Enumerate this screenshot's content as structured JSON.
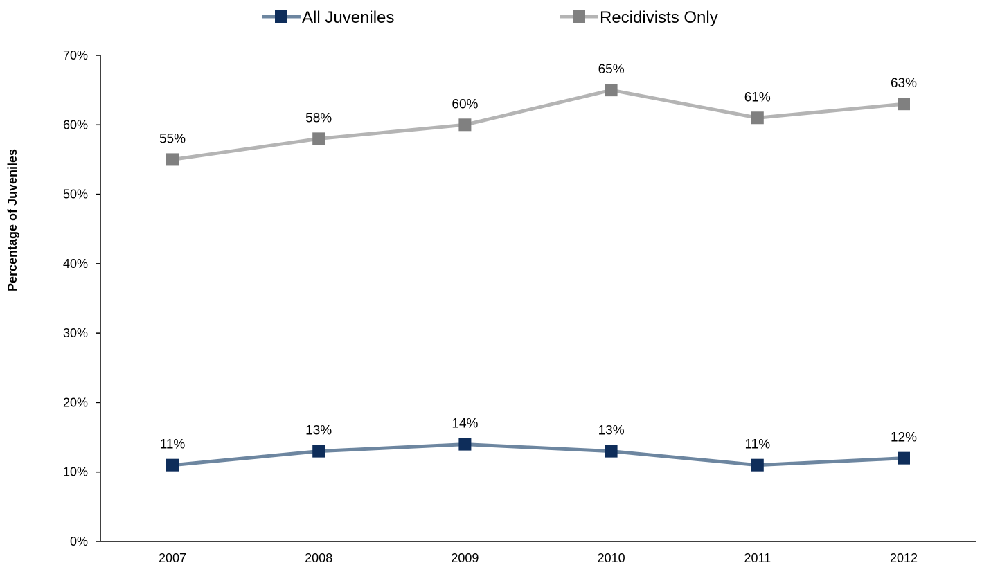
{
  "chart_data": {
    "type": "line",
    "title": "",
    "xlabel": "",
    "ylabel": "Percentage of Juveniles",
    "categories": [
      "2007",
      "2008",
      "2009",
      "2010",
      "2011",
      "2012"
    ],
    "ylim": [
      0,
      70
    ],
    "yticks": [
      0,
      10,
      20,
      30,
      40,
      50,
      60,
      70
    ],
    "ytick_labels": [
      "0%",
      "10%",
      "20%",
      "30%",
      "40%",
      "50%",
      "60%",
      "70%"
    ],
    "grid": false,
    "legend_position": "top-center",
    "series": [
      {
        "name": "All Juveniles",
        "values": [
          11,
          13,
          14,
          13,
          11,
          12
        ],
        "labels": [
          "11%",
          "13%",
          "14%",
          "13%",
          "11%",
          "12%"
        ],
        "line_color": "#6D86A0",
        "marker_color": "#0E2D5A"
      },
      {
        "name": "Recidivists Only",
        "values": [
          55,
          58,
          60,
          65,
          61,
          63
        ],
        "labels": [
          "55%",
          "58%",
          "60%",
          "65%",
          "61%",
          "63%"
        ],
        "line_color": "#B4B4B4",
        "marker_color": "#808080"
      }
    ]
  }
}
